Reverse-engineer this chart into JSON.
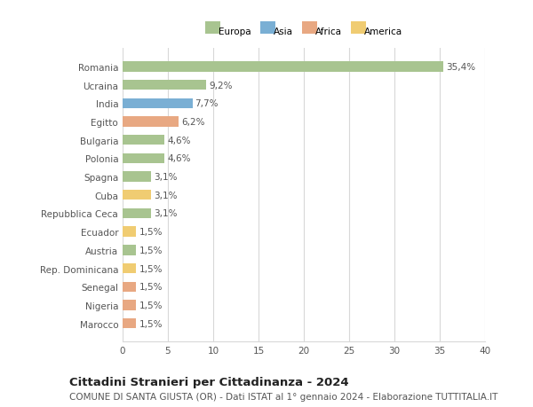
{
  "categories": [
    "Romania",
    "Ucraina",
    "India",
    "Egitto",
    "Bulgaria",
    "Polonia",
    "Spagna",
    "Cuba",
    "Repubblica Ceca",
    "Ecuador",
    "Austria",
    "Rep. Dominicana",
    "Senegal",
    "Nigeria",
    "Marocco"
  ],
  "values": [
    35.4,
    9.2,
    7.7,
    6.2,
    4.6,
    4.6,
    3.1,
    3.1,
    3.1,
    1.5,
    1.5,
    1.5,
    1.5,
    1.5,
    1.5
  ],
  "labels": [
    "35,4%",
    "9,2%",
    "7,7%",
    "6,2%",
    "4,6%",
    "4,6%",
    "3,1%",
    "3,1%",
    "3,1%",
    "1,5%",
    "1,5%",
    "1,5%",
    "1,5%",
    "1,5%",
    "1,5%"
  ],
  "continents": [
    "Europa",
    "Europa",
    "Asia",
    "Africa",
    "Europa",
    "Europa",
    "Europa",
    "America",
    "Europa",
    "America",
    "Europa",
    "America",
    "Africa",
    "Africa",
    "Africa"
  ],
  "continent_colors": {
    "Europa": "#a8c490",
    "Asia": "#7aafd4",
    "Africa": "#e8a882",
    "America": "#f0cc72"
  },
  "legend_order": [
    "Europa",
    "Asia",
    "Africa",
    "America"
  ],
  "xlim": [
    0,
    40
  ],
  "xticks": [
    0,
    5,
    10,
    15,
    20,
    25,
    30,
    35,
    40
  ],
  "title": "Cittadini Stranieri per Cittadinanza - 2024",
  "subtitle": "COMUNE DI SANTA GIUSTA (OR) - Dati ISTAT al 1° gennaio 2024 - Elaborazione TUTTITALIA.IT",
  "background_color": "#ffffff",
  "grid_color": "#d8d8d8",
  "bar_height": 0.55,
  "label_fontsize": 7.5,
  "tick_fontsize": 7.5,
  "title_fontsize": 9.5,
  "subtitle_fontsize": 7.5
}
